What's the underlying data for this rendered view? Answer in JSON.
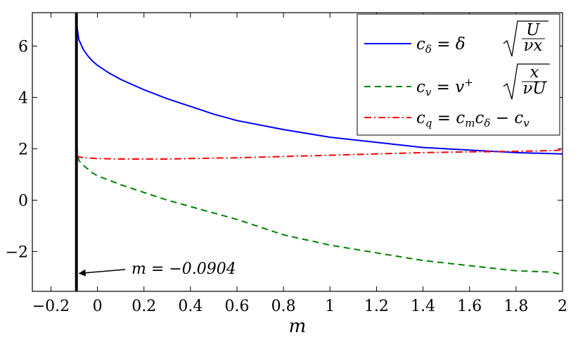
{
  "chart_data": {
    "type": "line",
    "xlabel": "m",
    "ylabel": "",
    "xlim": [
      -0.28,
      2.0
    ],
    "ylim": [
      -3.55,
      7.3
    ],
    "x_ticks": [
      -0.2,
      0,
      0.2,
      0.4,
      0.6,
      0.8,
      1,
      1.2,
      1.4,
      1.6,
      1.8,
      2
    ],
    "x_tick_labels": [
      "−0.2",
      "0",
      "0.2",
      "0.4",
      "0.6",
      "0.8",
      "1",
      "1.2",
      "1.4",
      "1.6",
      "1.8",
      "2"
    ],
    "y_ticks": [
      -2,
      0,
      2,
      4,
      6
    ],
    "y_tick_labels": [
      "−2",
      "0",
      "2",
      "4",
      "6"
    ],
    "grid": false,
    "legend_position": "top-right",
    "series": [
      {
        "name": "c_δ = δ √(U/(νx))",
        "color": "#0000ff",
        "style": "solid",
        "x": [
          -0.0904,
          -0.08,
          -0.06,
          -0.04,
          -0.02,
          0.0,
          0.05,
          0.1,
          0.2,
          0.3,
          0.4,
          0.5,
          0.6,
          0.8,
          1.0,
          1.2,
          1.4,
          1.6,
          1.8,
          2.0
        ],
        "y": [
          6.9,
          6.25,
          5.85,
          5.6,
          5.4,
          5.25,
          4.95,
          4.7,
          4.3,
          3.95,
          3.65,
          3.35,
          3.1,
          2.75,
          2.45,
          2.25,
          2.05,
          1.95,
          1.85,
          1.8
        ]
      },
      {
        "name": "c_v = v⁺ √(x/(νU))",
        "color": "#008000",
        "style": "dashed",
        "x": [
          -0.0904,
          -0.08,
          -0.06,
          -0.04,
          -0.02,
          0.0,
          0.1,
          0.2,
          0.3,
          0.4,
          0.5,
          0.6,
          0.8,
          1.0,
          1.2,
          1.4,
          1.6,
          1.8,
          1.95,
          2.0
        ],
        "y": [
          2.1,
          1.55,
          1.35,
          1.2,
          1.05,
          0.95,
          0.6,
          0.3,
          0.0,
          -0.25,
          -0.5,
          -0.75,
          -1.35,
          -1.75,
          -2.05,
          -2.35,
          -2.55,
          -2.75,
          -2.8,
          -2.9
        ]
      },
      {
        "name": "c_q = c_m c_δ − c_v",
        "color": "#ff0000",
        "style": "dashdot",
        "x": [
          -0.0904,
          -0.08,
          -0.05,
          0.0,
          0.1,
          0.2,
          0.3,
          0.4,
          0.6,
          0.8,
          1.0,
          1.2,
          1.4,
          1.6,
          1.8,
          1.95,
          2.0
        ],
        "y": [
          1.75,
          1.68,
          1.65,
          1.62,
          1.6,
          1.6,
          1.6,
          1.62,
          1.65,
          1.7,
          1.75,
          1.8,
          1.85,
          1.88,
          1.9,
          1.93,
          1.95
        ]
      }
    ],
    "vertical_line": {
      "x": -0.0904,
      "color": "#000000"
    },
    "annotation": {
      "text": "m = −0.0904",
      "arrow_to": [
        -0.0904,
        -2.85
      ]
    }
  }
}
